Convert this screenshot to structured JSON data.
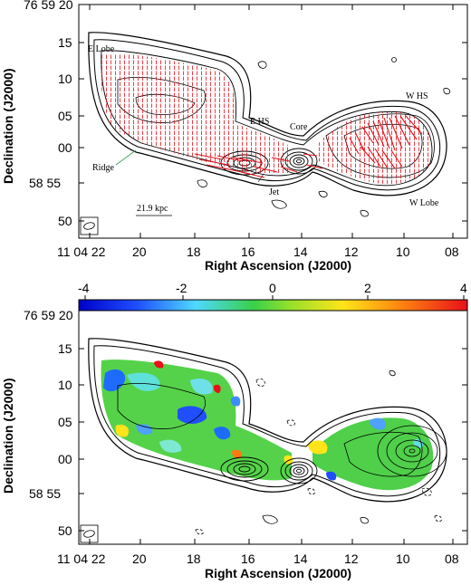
{
  "figure": {
    "top_panel": {
      "x_tick_labels": [
        "11 04 22",
        "20",
        "18",
        "16",
        "14",
        "12",
        "10",
        "08"
      ],
      "y_tick_labels": [
        "76 59 20",
        "15",
        "10",
        "05",
        "00",
        "58 55",
        "50"
      ],
      "xlabel": "Right Ascension (J2000)",
      "ylabel": "Declination (J2000)",
      "annotations": {
        "e_lobe": "E Lobe",
        "e_hs": "E HS",
        "core": "Core",
        "w_hs": "W HS",
        "ridge": "Ridge",
        "jet": "Jet",
        "w_lobe": "W Lobe",
        "scale_bar": "21.9 kpc"
      },
      "vector_color": "#e8101a"
    },
    "bottom_panel": {
      "colorbar_tick_labels": [
        "-4",
        "-2",
        "0",
        "2",
        "4"
      ],
      "x_tick_labels": [
        "11 04 22",
        "20",
        "18",
        "16",
        "14",
        "12",
        "10",
        "08"
      ],
      "y_tick_labels": [
        "76 59 20",
        "15",
        "10",
        "05",
        "00",
        "58 55",
        "50"
      ],
      "xlabel": "Right Ascension (J2000)",
      "ylabel": "Declination (J2000)"
    }
  }
}
